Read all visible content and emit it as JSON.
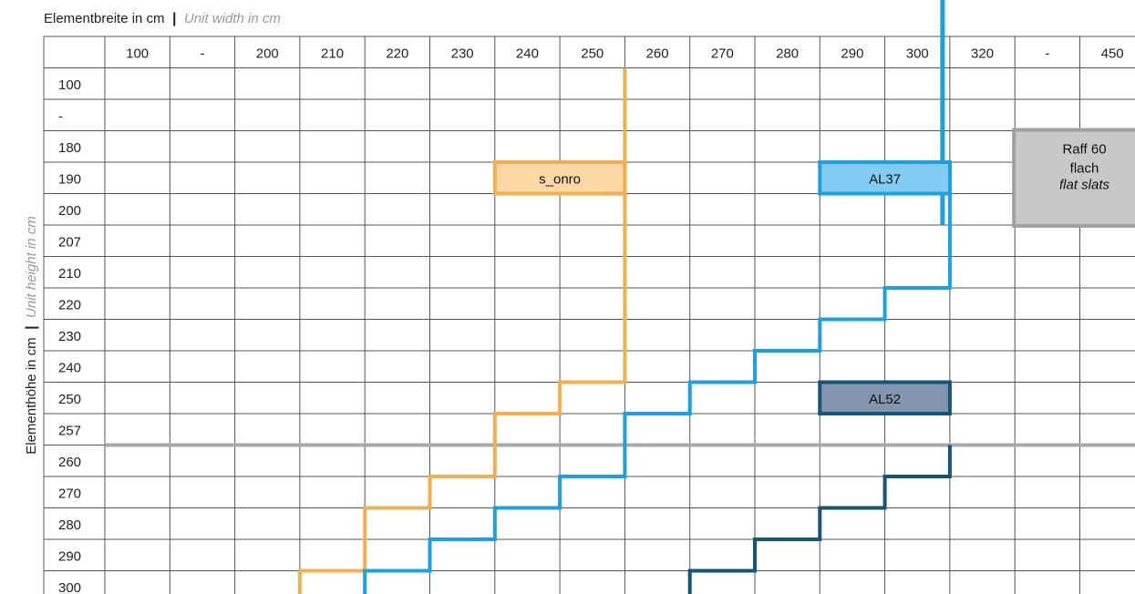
{
  "chart_data": {
    "type": "table",
    "title": "",
    "xlabel": "Elementbreite in cm",
    "xlabel_en": "Unit width in cm",
    "ylabel": "Elementhöhe in cm",
    "ylabel_en": "Unit height in cm",
    "label_separator": "|",
    "x_categories": [
      "100",
      "-",
      "200",
      "210",
      "220",
      "230",
      "240",
      "250",
      "260",
      "270",
      "280",
      "290",
      "300",
      "320",
      "-",
      "450"
    ],
    "y_categories": [
      "100",
      "-",
      "180",
      "190",
      "200",
      "207",
      "210",
      "220",
      "230",
      "240",
      "250",
      "257",
      "260",
      "270",
      "280",
      "290",
      "300"
    ],
    "reference_line": {
      "between_y": [
        "257",
        "260"
      ],
      "color": "#A8A8A8"
    },
    "series": [
      {
        "name": "s_onro",
        "color": "#F5AE4E",
        "fill": "#FCD8A6",
        "label_box": {
          "x_from": "240",
          "x_to": "250",
          "y": "190"
        },
        "max_height_by_width": [
          {
            "width": "210",
            "height": "300"
          },
          {
            "width": "220",
            "height": "280"
          },
          {
            "width": "230",
            "height": "270"
          },
          {
            "width": "240",
            "height": "257"
          },
          {
            "width": "250",
            "height": "250"
          },
          {
            "width": "250",
            "height": "100"
          }
        ]
      },
      {
        "name": "AL37",
        "color": "#1AA0E3",
        "fill": "#82CCF2",
        "label_box": {
          "x_from": "290",
          "x_to": "300",
          "y": "190"
        },
        "max_height_by_width": [
          {
            "width": "220",
            "height": "300"
          },
          {
            "width": "230",
            "height": "290"
          },
          {
            "width": "240",
            "height": "280"
          },
          {
            "width": "250",
            "height": "270"
          },
          {
            "width": "260",
            "height": "257"
          },
          {
            "width": "270",
            "height": "250"
          },
          {
            "width": "280",
            "height": "240"
          },
          {
            "width": "290",
            "height": "230"
          },
          {
            "width": "300",
            "height": "220"
          },
          {
            "width": "300",
            "height": "190"
          }
        ]
      },
      {
        "name": "AL52",
        "color": "#14557A",
        "fill": "#8494AE",
        "label_box": {
          "x_from": "290",
          "x_to": "300",
          "y": "250"
        },
        "max_height_by_width": [
          {
            "width": "270",
            "height": "300"
          },
          {
            "width": "280",
            "height": "290"
          },
          {
            "width": "290",
            "height": "280"
          },
          {
            "width": "300",
            "height": "270"
          },
          {
            "width": "300",
            "height": "100"
          }
        ]
      }
    ],
    "annotation_box": {
      "lines": [
        "Raff 60",
        "flach"
      ],
      "italic_line": "flat slats",
      "x_col": "-",
      "y_from": "180",
      "y_to": "200",
      "fill": "#C8C8C8",
      "border": "#A0A0A0"
    }
  }
}
